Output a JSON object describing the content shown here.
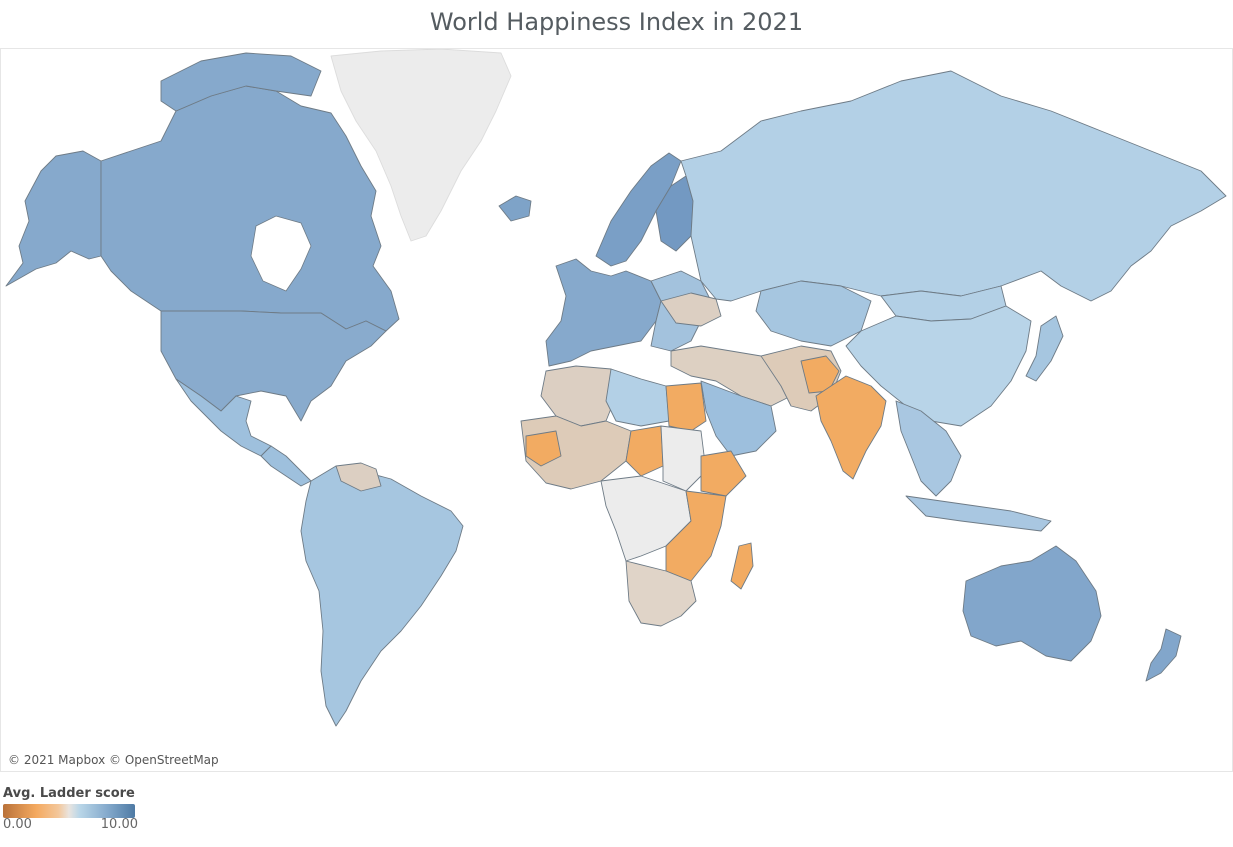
{
  "title": "World Happiness Index in 2021",
  "attribution": "© 2021 Mapbox © OpenStreetMap",
  "legend": {
    "title": "Avg. Ladder score",
    "min_label": "0.00",
    "max_label": "10.00",
    "gradient_colors": [
      "#b9723a",
      "#f4a95f",
      "#e9e4df",
      "#b9d6e8",
      "#4e7aa4"
    ]
  },
  "map": {
    "type": "choropleth",
    "measure": "Avg. Ladder score",
    "range": [
      0,
      10
    ],
    "no_data_color": "#ececec",
    "ocean_color": "#ffffff",
    "regions": [
      {
        "id": "canada",
        "color": "#86a9cc"
      },
      {
        "id": "alaska",
        "color": "#86a9cc"
      },
      {
        "id": "greenland",
        "color": "#ececec"
      },
      {
        "id": "usa",
        "color": "#89abcd"
      },
      {
        "id": "mexico",
        "color": "#9ec0dd"
      },
      {
        "id": "central-america",
        "color": "#9ec0dd"
      },
      {
        "id": "south-america",
        "color": "#a6c6e0"
      },
      {
        "id": "venezuela",
        "color": "#dccfc2"
      },
      {
        "id": "iceland",
        "color": "#7ea3c8"
      },
      {
        "id": "scandinavia",
        "color": "#7a9fc6"
      },
      {
        "id": "finland",
        "color": "#7399c2"
      },
      {
        "id": "western-europe",
        "color": "#86a9cc"
      },
      {
        "id": "eastern-europe",
        "color": "#a3c2dd"
      },
      {
        "id": "ukraine",
        "color": "#dccfc2"
      },
      {
        "id": "russia",
        "color": "#b3d0e6"
      },
      {
        "id": "kazakhstan",
        "color": "#a6c6e0"
      },
      {
        "id": "china",
        "color": "#b8d4e8"
      },
      {
        "id": "mongolia",
        "color": "#b3d0e6"
      },
      {
        "id": "japan",
        "color": "#a6c6e0"
      },
      {
        "id": "turkey-middle-east",
        "color": "#ddd0c2"
      },
      {
        "id": "saudi-arabia",
        "color": "#9dbfdd"
      },
      {
        "id": "egypt",
        "color": "#f2ab62"
      },
      {
        "id": "libya",
        "color": "#b3d0e6"
      },
      {
        "id": "algeria",
        "color": "#dccfc2"
      },
      {
        "id": "west-africa",
        "color": "#ddcbb8"
      },
      {
        "id": "west-africa-orange",
        "color": "#f2ab62"
      },
      {
        "id": "chad",
        "color": "#f2ab62"
      },
      {
        "id": "sudan",
        "color": "#ececec"
      },
      {
        "id": "ethiopia",
        "color": "#f2ab62"
      },
      {
        "id": "central-africa",
        "color": "#ececec"
      },
      {
        "id": "east-africa",
        "color": "#f2ab62"
      },
      {
        "id": "southern-africa",
        "color": "#e0d4c8"
      },
      {
        "id": "madagascar",
        "color": "#f2ab62"
      },
      {
        "id": "afghanistan",
        "color": "#f2ab62"
      },
      {
        "id": "iran-pakistan",
        "color": "#ddcbb8"
      },
      {
        "id": "india",
        "color": "#f2ab62"
      },
      {
        "id": "southeast-asia",
        "color": "#a9c7e1"
      },
      {
        "id": "indonesia",
        "color": "#a9c7e1"
      },
      {
        "id": "australia",
        "color": "#82a6cb"
      },
      {
        "id": "new-zealand",
        "color": "#82a6cb"
      }
    ]
  }
}
